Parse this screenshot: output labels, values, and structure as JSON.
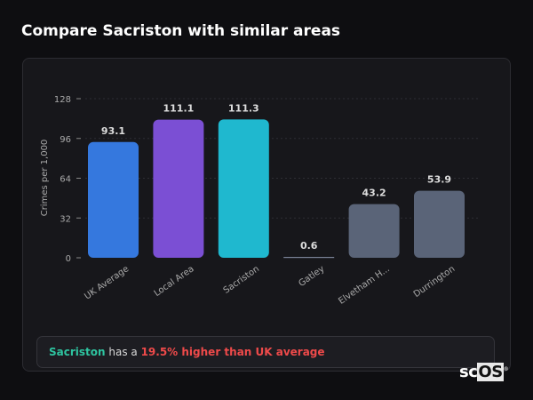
{
  "title": "Compare Sacriston with similar areas",
  "chart_data": {
    "type": "bar",
    "title": "",
    "xlabel": "",
    "ylabel": "Crimes per 1,000",
    "ylim": [
      0,
      128
    ],
    "yticks": [
      0,
      32,
      64,
      96,
      128
    ],
    "grid": true,
    "categories": [
      "UK Average",
      "Local Area",
      "Sacriston",
      "Gatley",
      "Elvetham H...",
      "Durrington"
    ],
    "values": [
      93.1,
      111.1,
      111.3,
      0.6,
      43.2,
      53.9
    ],
    "value_labels": [
      "93.1",
      "111.1",
      "111.3",
      "0.6",
      "43.2",
      "53.9"
    ],
    "colors": [
      "#3578de",
      "#7b4fd4",
      "#1fb8cf",
      "#5a6478",
      "#5a6478",
      "#5a6478"
    ]
  },
  "summary": {
    "area": "Sacriston",
    "middle": " has a ",
    "difference": "19.5% higher than UK average"
  },
  "logo": {
    "text": "scOS",
    "mark": "®"
  }
}
